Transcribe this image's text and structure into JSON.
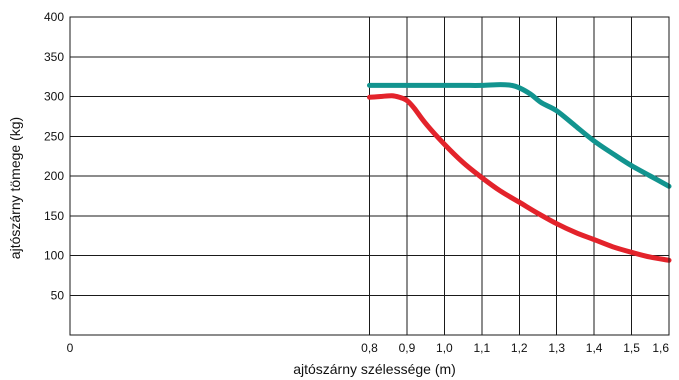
{
  "chart_data": {
    "type": "line",
    "title": "",
    "xlabel": "ajtószárny szélessége (m)",
    "ylabel": "ajtószárny tömege (kg)",
    "xlim": [
      0,
      1.6
    ],
    "ylim": [
      0,
      400
    ],
    "grid": true,
    "x_ticks": [
      {
        "value": 0,
        "label": "0"
      },
      {
        "value": 0.8,
        "label": "0,8"
      },
      {
        "value": 0.9,
        "label": "0,9"
      },
      {
        "value": 1.0,
        "label": "1,0"
      },
      {
        "value": 1.1,
        "label": "1,1"
      },
      {
        "value": 1.2,
        "label": "1,2"
      },
      {
        "value": 1.3,
        "label": "1,3"
      },
      {
        "value": 1.4,
        "label": "1,4"
      },
      {
        "value": 1.5,
        "label": "1,5"
      },
      {
        "value": 1.6,
        "label": "1,6"
      }
    ],
    "y_ticks": [
      {
        "value": 50,
        "label": "50"
      },
      {
        "value": 100,
        "label": "100"
      },
      {
        "value": 150,
        "label": "150"
      },
      {
        "value": 200,
        "label": "200"
      },
      {
        "value": 250,
        "label": "250"
      },
      {
        "value": 300,
        "label": "300"
      },
      {
        "value": 350,
        "label": "350"
      },
      {
        "value": 400,
        "label": "400"
      }
    ],
    "series": [
      {
        "color": "#12948f",
        "x": [
          0.8,
          0.85,
          0.9,
          0.95,
          1.0,
          1.05,
          1.1,
          1.15,
          1.18,
          1.2,
          1.23,
          1.26,
          1.3,
          1.35,
          1.4,
          1.45,
          1.5,
          1.55,
          1.6
        ],
        "y": [
          314,
          314,
          314,
          314,
          314,
          314,
          314,
          315,
          314,
          311,
          303,
          292,
          282,
          263,
          244,
          228,
          213,
          200,
          187
        ]
      },
      {
        "color": "#e3232b",
        "x": [
          0.8,
          0.83,
          0.86,
          0.88,
          0.9,
          0.92,
          0.95,
          1.0,
          1.05,
          1.1,
          1.15,
          1.2,
          1.25,
          1.3,
          1.35,
          1.4,
          1.45,
          1.5,
          1.55,
          1.6
        ],
        "y": [
          299,
          300,
          301,
          299,
          295,
          285,
          266,
          240,
          217,
          198,
          181,
          167,
          153,
          140,
          129,
          120,
          111,
          104,
          98,
          94
        ]
      }
    ]
  }
}
